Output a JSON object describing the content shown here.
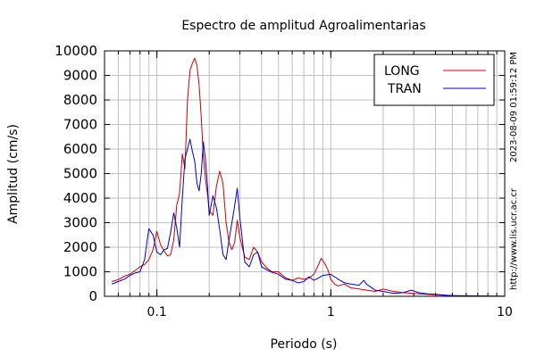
{
  "chart_data": {
    "type": "line",
    "title": "Espectro de amplitud Agroalimentarias",
    "xlabel": "Periodo (s)",
    "ylabel": "Amplitud (cm/s)",
    "x_scale": "log",
    "xlim": [
      0.05,
      10
    ],
    "ylim": [
      0,
      10000
    ],
    "x_ticks": [
      {
        "value": 0.1,
        "label": "0.1"
      },
      {
        "value": 1,
        "label": "1"
      },
      {
        "value": 10,
        "label": "10"
      }
    ],
    "y_ticks": [
      {
        "value": 0,
        "label": "0"
      },
      {
        "value": 1000,
        "label": "1000"
      },
      {
        "value": 2000,
        "label": "2000"
      },
      {
        "value": 3000,
        "label": "3000"
      },
      {
        "value": 4000,
        "label": "4000"
      },
      {
        "value": 5000,
        "label": "5000"
      },
      {
        "value": 6000,
        "label": "6000"
      },
      {
        "value": 7000,
        "label": "7000"
      },
      {
        "value": 8000,
        "label": "8000"
      },
      {
        "value": 9000,
        "label": "9000"
      },
      {
        "value": 10000,
        "label": "10000"
      }
    ],
    "grid": true,
    "legend_position": "top-right",
    "timestamp": "2023-08-09 01:59:12 PM",
    "source_url": "http://www.lis.ucr.ac.cr",
    "series": [
      {
        "name": "LONG",
        "color": "#cc0000",
        "points": [
          [
            0.055,
            600
          ],
          [
            0.06,
            680
          ],
          [
            0.065,
            820
          ],
          [
            0.07,
            900
          ],
          [
            0.075,
            1050
          ],
          [
            0.08,
            1200
          ],
          [
            0.085,
            1300
          ],
          [
            0.09,
            1500
          ],
          [
            0.095,
            1900
          ],
          [
            0.1,
            2650
          ],
          [
            0.105,
            2100
          ],
          [
            0.11,
            1850
          ],
          [
            0.115,
            1650
          ],
          [
            0.12,
            1700
          ],
          [
            0.125,
            2300
          ],
          [
            0.13,
            3700
          ],
          [
            0.135,
            4200
          ],
          [
            0.14,
            5800
          ],
          [
            0.145,
            5200
          ],
          [
            0.15,
            8000
          ],
          [
            0.155,
            9200
          ],
          [
            0.16,
            9500
          ],
          [
            0.165,
            9700
          ],
          [
            0.17,
            9400
          ],
          [
            0.175,
            8600
          ],
          [
            0.18,
            7300
          ],
          [
            0.185,
            5700
          ],
          [
            0.19,
            4800
          ],
          [
            0.195,
            4200
          ],
          [
            0.2,
            3500
          ],
          [
            0.21,
            3300
          ],
          [
            0.22,
            4500
          ],
          [
            0.23,
            5100
          ],
          [
            0.24,
            4600
          ],
          [
            0.25,
            3000
          ],
          [
            0.26,
            2200
          ],
          [
            0.27,
            1900
          ],
          [
            0.28,
            2200
          ],
          [
            0.29,
            3100
          ],
          [
            0.3,
            2400
          ],
          [
            0.32,
            1600
          ],
          [
            0.34,
            1500
          ],
          [
            0.36,
            2000
          ],
          [
            0.38,
            1800
          ],
          [
            0.4,
            1400
          ],
          [
            0.43,
            1150
          ],
          [
            0.46,
            1000
          ],
          [
            0.5,
            1000
          ],
          [
            0.55,
            750
          ],
          [
            0.6,
            650
          ],
          [
            0.65,
            750
          ],
          [
            0.7,
            700
          ],
          [
            0.75,
            750
          ],
          [
            0.8,
            900
          ],
          [
            0.85,
            1300
          ],
          [
            0.88,
            1550
          ],
          [
            0.92,
            1350
          ],
          [
            0.96,
            1100
          ],
          [
            1,
            700
          ],
          [
            1.05,
            500
          ],
          [
            1.1,
            420
          ],
          [
            1.2,
            500
          ],
          [
            1.3,
            350
          ],
          [
            1.45,
            300
          ],
          [
            1.6,
            250
          ],
          [
            1.8,
            200
          ],
          [
            2,
            300
          ],
          [
            2.3,
            200
          ],
          [
            2.6,
            150
          ],
          [
            3,
            120
          ],
          [
            3.5,
            80
          ],
          [
            4,
            60
          ],
          [
            4.5,
            40
          ],
          [
            5,
            25
          ],
          [
            6,
            15
          ],
          [
            8,
            10
          ],
          [
            10,
            5
          ]
        ]
      },
      {
        "name": "TRAN",
        "color": "#0000cc",
        "points": [
          [
            0.055,
            500
          ],
          [
            0.06,
            600
          ],
          [
            0.065,
            700
          ],
          [
            0.07,
            850
          ],
          [
            0.075,
            950
          ],
          [
            0.08,
            1000
          ],
          [
            0.085,
            1500
          ],
          [
            0.088,
            2300
          ],
          [
            0.09,
            2750
          ],
          [
            0.095,
            2500
          ],
          [
            0.1,
            1800
          ],
          [
            0.105,
            1700
          ],
          [
            0.11,
            1900
          ],
          [
            0.115,
            1950
          ],
          [
            0.12,
            2600
          ],
          [
            0.125,
            3400
          ],
          [
            0.13,
            2800
          ],
          [
            0.135,
            2000
          ],
          [
            0.14,
            4000
          ],
          [
            0.145,
            5600
          ],
          [
            0.15,
            6000
          ],
          [
            0.155,
            6400
          ],
          [
            0.16,
            5900
          ],
          [
            0.165,
            5500
          ],
          [
            0.17,
            4600
          ],
          [
            0.175,
            4300
          ],
          [
            0.18,
            5000
          ],
          [
            0.185,
            6300
          ],
          [
            0.19,
            5600
          ],
          [
            0.195,
            4600
          ],
          [
            0.2,
            3300
          ],
          [
            0.21,
            4100
          ],
          [
            0.22,
            3600
          ],
          [
            0.23,
            2700
          ],
          [
            0.24,
            1700
          ],
          [
            0.25,
            1500
          ],
          [
            0.26,
            2300
          ],
          [
            0.27,
            3000
          ],
          [
            0.28,
            3700
          ],
          [
            0.29,
            4400
          ],
          [
            0.3,
            3200
          ],
          [
            0.31,
            2300
          ],
          [
            0.32,
            1400
          ],
          [
            0.34,
            1200
          ],
          [
            0.36,
            1700
          ],
          [
            0.38,
            1800
          ],
          [
            0.4,
            1200
          ],
          [
            0.45,
            1000
          ],
          [
            0.5,
            900
          ],
          [
            0.55,
            700
          ],
          [
            0.6,
            650
          ],
          [
            0.65,
            550
          ],
          [
            0.7,
            600
          ],
          [
            0.75,
            800
          ],
          [
            0.8,
            650
          ],
          [
            0.85,
            750
          ],
          [
            0.9,
            850
          ],
          [
            1,
            900
          ],
          [
            1.05,
            800
          ],
          [
            1.1,
            700
          ],
          [
            1.2,
            550
          ],
          [
            1.3,
            500
          ],
          [
            1.45,
            450
          ],
          [
            1.55,
            650
          ],
          [
            1.6,
            500
          ],
          [
            1.8,
            250
          ],
          [
            2,
            200
          ],
          [
            2.3,
            120
          ],
          [
            2.6,
            150
          ],
          [
            2.9,
            250
          ],
          [
            3.2,
            150
          ],
          [
            3.6,
            100
          ],
          [
            4,
            80
          ],
          [
            4.5,
            50
          ],
          [
            5,
            30
          ],
          [
            6,
            20
          ],
          [
            8,
            10
          ],
          [
            10,
            5
          ]
        ]
      }
    ]
  }
}
